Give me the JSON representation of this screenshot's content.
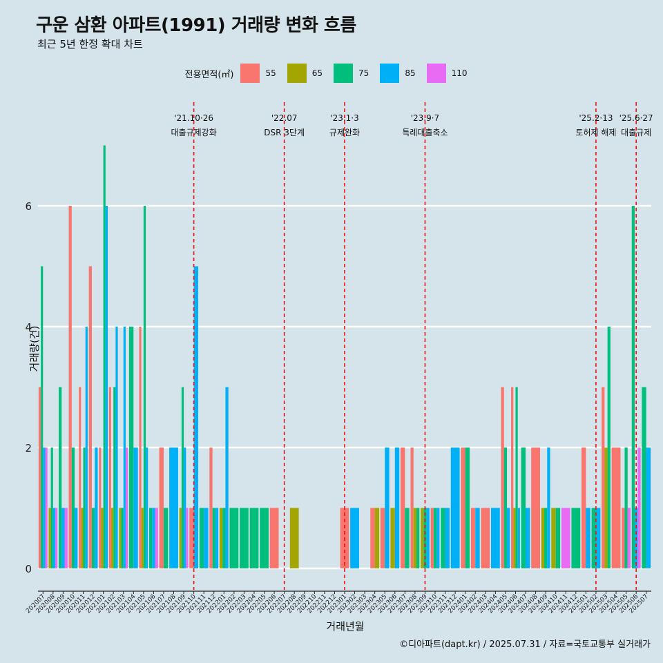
{
  "header": {
    "title": "구운 삼환 아파트(1991) 거래량 변화 흐름",
    "subtitle": "최근 5년 한정 확대 차트"
  },
  "legend": {
    "title": "전용면적(㎡)",
    "items": [
      {
        "label": "55",
        "color": "#f8766d"
      },
      {
        "label": "65",
        "color": "#a3a500"
      },
      {
        "label": "75",
        "color": "#00bf7d"
      },
      {
        "label": "85",
        "color": "#00b0f6"
      },
      {
        "label": "110",
        "color": "#e76bf3"
      }
    ]
  },
  "caption": "©디아파트(dapt.kr) / 2025.07.31 / 자료=국토교통부 실거래가",
  "chart_data": {
    "type": "bar",
    "title": "구운 삼환 아파트(1991) 거래량 변화 흐름",
    "xlabel": "거래년월",
    "ylabel": "거래량(건)",
    "ylim": [
      0,
      7.2
    ],
    "yticks": [
      0,
      2,
      4,
      6
    ],
    "categories": [
      "202007",
      "202008",
      "202009",
      "202010",
      "202011",
      "202012",
      "202101",
      "202102",
      "202103",
      "202104",
      "202105",
      "202106",
      "202107",
      "202108",
      "202109",
      "202110",
      "202111",
      "202112",
      "202201",
      "202202",
      "202203",
      "202204",
      "202205",
      "202206",
      "202207",
      "202208",
      "202209",
      "202210",
      "202211",
      "202212",
      "202301",
      "202302",
      "202303",
      "202304",
      "202305",
      "202306",
      "202307",
      "202308",
      "202309",
      "202310",
      "202311",
      "202312",
      "202401",
      "202402",
      "202403",
      "202404",
      "202405",
      "202406",
      "202407",
      "202408",
      "202409",
      "202410",
      "202411",
      "202412",
      "202501",
      "202502",
      "202503",
      "202504",
      "202505",
      "202506",
      "202507"
    ],
    "series": [
      {
        "name": "55",
        "color": "#f8766d",
        "values": [
          3,
          0,
          0,
          6,
          3,
          5,
          2,
          3,
          0,
          0,
          4,
          0,
          2,
          0,
          0,
          1,
          0,
          2,
          0,
          0,
          0,
          0,
          0,
          1,
          0,
          0,
          0,
          0,
          0,
          0,
          1,
          0,
          0,
          1,
          1,
          0,
          2,
          2,
          0,
          1,
          0,
          0,
          2,
          1,
          1,
          0,
          3,
          3,
          0,
          2,
          0,
          0,
          0,
          0,
          2,
          0,
          3,
          2,
          1,
          0,
          0
        ]
      },
      {
        "name": "65",
        "color": "#a3a500",
        "values": [
          0,
          1,
          0,
          0,
          1,
          0,
          1,
          1,
          1,
          0,
          1,
          0,
          0,
          0,
          1,
          0,
          0,
          0,
          1,
          0,
          0,
          0,
          0,
          0,
          0,
          1,
          0,
          0,
          0,
          0,
          0,
          0,
          0,
          1,
          0,
          1,
          0,
          1,
          1,
          0,
          0,
          0,
          0,
          0,
          0,
          0,
          0,
          1,
          0,
          0,
          1,
          1,
          0,
          0,
          0,
          0,
          2,
          0,
          0,
          0,
          0
        ]
      },
      {
        "name": "75",
        "color": "#00bf7d",
        "values": [
          5,
          2,
          3,
          2,
          2,
          1,
          7,
          3,
          1,
          4,
          6,
          1,
          1,
          0,
          3,
          0,
          1,
          1,
          1,
          1,
          1,
          1,
          1,
          0,
          0,
          0,
          0,
          0,
          0,
          0,
          0,
          0,
          0,
          0,
          0,
          0,
          1,
          1,
          1,
          1,
          1,
          0,
          2,
          0,
          0,
          0,
          2,
          3,
          2,
          0,
          1,
          1,
          0,
          1,
          0,
          1,
          4,
          0,
          2,
          6,
          3
        ]
      },
      {
        "name": "85",
        "color": "#00b0f6",
        "values": [
          2,
          1,
          1,
          1,
          4,
          2,
          6,
          4,
          4,
          2,
          2,
          1,
          0,
          2,
          2,
          5,
          1,
          1,
          3,
          0,
          0,
          0,
          0,
          0,
          0,
          0,
          0,
          0,
          0,
          0,
          0,
          1,
          0,
          0,
          2,
          2,
          0,
          0,
          1,
          1,
          1,
          2,
          0,
          1,
          0,
          1,
          1,
          1,
          1,
          0,
          2,
          0,
          0,
          0,
          1,
          1,
          0,
          0,
          0,
          1,
          2
        ]
      },
      {
        "name": "110",
        "color": "#e76bf3",
        "values": [
          2,
          1,
          1,
          0,
          0,
          0,
          0,
          0,
          2,
          0,
          0,
          1,
          0,
          0,
          1,
          0,
          0,
          0,
          0,
          0,
          0,
          0,
          0,
          0,
          0,
          0,
          0,
          0,
          0,
          0,
          0,
          0,
          0,
          0,
          0,
          0,
          0,
          0,
          0,
          0,
          0,
          0,
          0,
          0,
          0,
          0,
          0,
          0,
          0,
          0,
          0,
          0,
          1,
          0,
          0,
          0,
          0,
          0,
          1,
          2,
          0
        ]
      }
    ],
    "events": [
      {
        "label": "'21.10·26",
        "sub": "대출규제강화",
        "index": 15.5
      },
      {
        "label": "'22.07",
        "sub": "DSR 3단계",
        "index": 24.5
      },
      {
        "label": "'23.1·3",
        "sub": "규제완화",
        "index": 30.5
      },
      {
        "label": "'23.9·7",
        "sub": "특례대출축소",
        "index": 38.5
      },
      {
        "label": "'25.2·13",
        "sub": "토허제 해제",
        "index": 55.5
      },
      {
        "label": "'25.6·27",
        "sub": "대출규제",
        "index": 59.5
      }
    ]
  }
}
